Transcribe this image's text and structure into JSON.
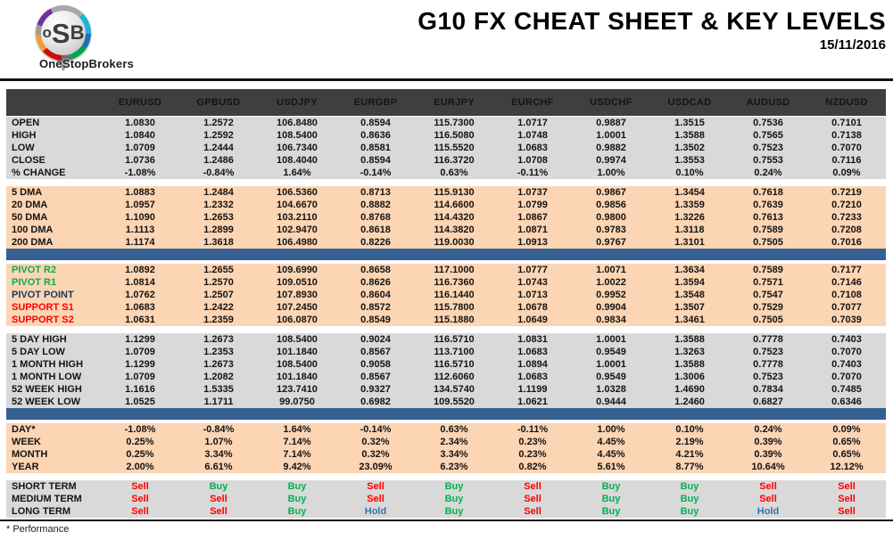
{
  "logo": {
    "letters": [
      "o",
      "S",
      "B"
    ],
    "name": "OneStopBrokers"
  },
  "header": {
    "title": "G10 FX CHEAT SHEET & KEY LEVELS",
    "date": "15/11/2016"
  },
  "footnote": "* Performance",
  "colors": {
    "header-bg": "#3F3F3F",
    "gray-bg": "#D9D9D9",
    "peach-bg": "#FCD5B4",
    "divider-blue": "#376092",
    "buy-green": "#00B050",
    "sell-red": "#FF0000",
    "hold-blue": "#2E74B5",
    "pivot-navy": "#17375E"
  },
  "table": {
    "columns": [
      "EURUSD",
      "GPBUSD",
      "USDJPY",
      "EURGBP",
      "EURJPY",
      "EURCHF",
      "USDCHF",
      "USDCAD",
      "AUDUSD",
      "NZDUSD"
    ],
    "sections": [
      {
        "kind": "rows",
        "name": "quotes",
        "bg": "gray",
        "rows": [
          {
            "label": "OPEN",
            "values": [
              "1.0830",
              "1.2572",
              "106.8480",
              "0.8594",
              "115.7300",
              "1.0717",
              "0.9887",
              "1.3515",
              "0.7536",
              "0.7101"
            ]
          },
          {
            "label": "HIGH",
            "values": [
              "1.0840",
              "1.2592",
              "108.5400",
              "0.8636",
              "116.5080",
              "1.0748",
              "1.0001",
              "1.3588",
              "0.7565",
              "0.7138"
            ]
          },
          {
            "label": "LOW",
            "values": [
              "1.0709",
              "1.2444",
              "106.7340",
              "0.8581",
              "115.5520",
              "1.0683",
              "0.9882",
              "1.3502",
              "0.7523",
              "0.7070"
            ]
          },
          {
            "label": "CLOSE",
            "values": [
              "1.0736",
              "1.2486",
              "108.4040",
              "0.8594",
              "116.3720",
              "1.0708",
              "0.9974",
              "1.3553",
              "0.7553",
              "0.7116"
            ]
          },
          {
            "label": "% CHANGE",
            "values": [
              "-1.08%",
              "-0.84%",
              "1.64%",
              "-0.14%",
              "0.63%",
              "-0.11%",
              "1.00%",
              "0.10%",
              "0.24%",
              "0.09%"
            ]
          }
        ]
      },
      {
        "kind": "rows",
        "name": "moving-averages",
        "bg": "peach",
        "rows": [
          {
            "label": "5 DMA",
            "values": [
              "1.0883",
              "1.2484",
              "106.5360",
              "0.8713",
              "115.9130",
              "1.0737",
              "0.9867",
              "1.3454",
              "0.7618",
              "0.7219"
            ]
          },
          {
            "label": "20 DMA",
            "values": [
              "1.0957",
              "1.2332",
              "104.6670",
              "0.8882",
              "114.6600",
              "1.0799",
              "0.9856",
              "1.3359",
              "0.7639",
              "0.7210"
            ]
          },
          {
            "label": "50 DMA",
            "values": [
              "1.1090",
              "1.2653",
              "103.2110",
              "0.8768",
              "114.4320",
              "1.0867",
              "0.9800",
              "1.3226",
              "0.7613",
              "0.7233"
            ]
          },
          {
            "label": "100 DMA",
            "values": [
              "1.1113",
              "1.2899",
              "102.9470",
              "0.8618",
              "114.3820",
              "1.0871",
              "0.9783",
              "1.3118",
              "0.7589",
              "0.7208"
            ]
          },
          {
            "label": "200 DMA",
            "values": [
              "1.1174",
              "1.3618",
              "106.4980",
              "0.8226",
              "119.0030",
              "1.0913",
              "0.9767",
              "1.3101",
              "0.7505",
              "0.7016"
            ]
          }
        ]
      },
      {
        "kind": "divider"
      },
      {
        "kind": "rows",
        "name": "pivots",
        "bg": "peach",
        "rows": [
          {
            "label": "PIVOT R2",
            "color": "green",
            "values": [
              "1.0892",
              "1.2655",
              "109.6990",
              "0.8658",
              "117.1000",
              "1.0777",
              "1.0071",
              "1.3634",
              "0.7589",
              "0.7177"
            ]
          },
          {
            "label": "PIVOT R1",
            "color": "green",
            "values": [
              "1.0814",
              "1.2570",
              "109.0510",
              "0.8626",
              "116.7360",
              "1.0743",
              "1.0022",
              "1.3594",
              "0.7571",
              "0.7146"
            ]
          },
          {
            "label": "PIVOT POINT",
            "color": "navy",
            "values": [
              "1.0762",
              "1.2507",
              "107.8930",
              "0.8604",
              "116.1440",
              "1.0713",
              "0.9952",
              "1.3548",
              "0.7547",
              "0.7108"
            ]
          },
          {
            "label": "SUPPORT S1",
            "color": "red",
            "values": [
              "1.0683",
              "1.2422",
              "107.2450",
              "0.8572",
              "115.7800",
              "1.0678",
              "0.9904",
              "1.3507",
              "0.7529",
              "0.7077"
            ]
          },
          {
            "label": "SUPPORT S2",
            "color": "red",
            "values": [
              "1.0631",
              "1.2359",
              "106.0870",
              "0.8549",
              "115.1880",
              "1.0649",
              "0.9834",
              "1.3461",
              "0.7505",
              "0.7039"
            ]
          }
        ]
      },
      {
        "kind": "rows",
        "name": "ranges",
        "bg": "gray",
        "rows": [
          {
            "label": "5 DAY HIGH",
            "values": [
              "1.1299",
              "1.2673",
              "108.5400",
              "0.9024",
              "116.5710",
              "1.0831",
              "1.0001",
              "1.3588",
              "0.7778",
              "0.7403"
            ]
          },
          {
            "label": "5 DAY LOW",
            "values": [
              "1.0709",
              "1.2353",
              "101.1840",
              "0.8567",
              "113.7100",
              "1.0683",
              "0.9549",
              "1.3263",
              "0.7523",
              "0.7070"
            ]
          },
          {
            "label": "1 MONTH HIGH",
            "values": [
              "1.1299",
              "1.2673",
              "108.5400",
              "0.9058",
              "116.5710",
              "1.0894",
              "1.0001",
              "1.3588",
              "0.7778",
              "0.7403"
            ]
          },
          {
            "label": "1 MONTH LOW",
            "values": [
              "1.0709",
              "1.2082",
              "101.1840",
              "0.8567",
              "112.6060",
              "1.0683",
              "0.9549",
              "1.3006",
              "0.7523",
              "0.7070"
            ]
          },
          {
            "label": "52 WEEK HIGH",
            "values": [
              "1.1616",
              "1.5335",
              "123.7410",
              "0.9327",
              "134.5740",
              "1.1199",
              "1.0328",
              "1.4690",
              "0.7834",
              "0.7485"
            ]
          },
          {
            "label": "52 WEEK LOW",
            "values": [
              "1.0525",
              "1.1711",
              "99.0750",
              "0.6982",
              "109.5520",
              "1.0621",
              "0.9444",
              "1.2460",
              "0.6827",
              "0.6346"
            ]
          }
        ]
      },
      {
        "kind": "divider"
      },
      {
        "kind": "rows",
        "name": "performance",
        "bg": "peach",
        "rows": [
          {
            "label": "DAY*",
            "values": [
              "-1.08%",
              "-0.84%",
              "1.64%",
              "-0.14%",
              "0.63%",
              "-0.11%",
              "1.00%",
              "0.10%",
              "0.24%",
              "0.09%"
            ]
          },
          {
            "label": "WEEK",
            "values": [
              "0.25%",
              "1.07%",
              "7.14%",
              "0.32%",
              "2.34%",
              "0.23%",
              "4.45%",
              "2.19%",
              "0.39%",
              "0.65%"
            ]
          },
          {
            "label": "MONTH",
            "values": [
              "0.25%",
              "3.34%",
              "7.14%",
              "0.32%",
              "3.34%",
              "0.23%",
              "4.45%",
              "4.21%",
              "0.39%",
              "0.65%"
            ]
          },
          {
            "label": "YEAR",
            "values": [
              "2.00%",
              "6.61%",
              "9.42%",
              "23.09%",
              "6.23%",
              "0.82%",
              "5.61%",
              "8.77%",
              "10.64%",
              "12.12%"
            ]
          }
        ]
      },
      {
        "kind": "rows",
        "name": "signals",
        "bg": "gray",
        "signals": true,
        "rows": [
          {
            "label": "SHORT TERM",
            "values": [
              "Sell",
              "Buy",
              "Buy",
              "Sell",
              "Buy",
              "Sell",
              "Buy",
              "Buy",
              "Sell",
              "Sell"
            ]
          },
          {
            "label": "MEDIUM TERM",
            "values": [
              "Sell",
              "Sell",
              "Buy",
              "Sell",
              "Buy",
              "Sell",
              "Buy",
              "Buy",
              "Sell",
              "Sell"
            ]
          },
          {
            "label": "LONG TERM",
            "values": [
              "Sell",
              "Sell",
              "Buy",
              "Hold",
              "Buy",
              "Sell",
              "Buy",
              "Buy",
              "Hold",
              "Sell"
            ]
          }
        ]
      }
    ]
  }
}
